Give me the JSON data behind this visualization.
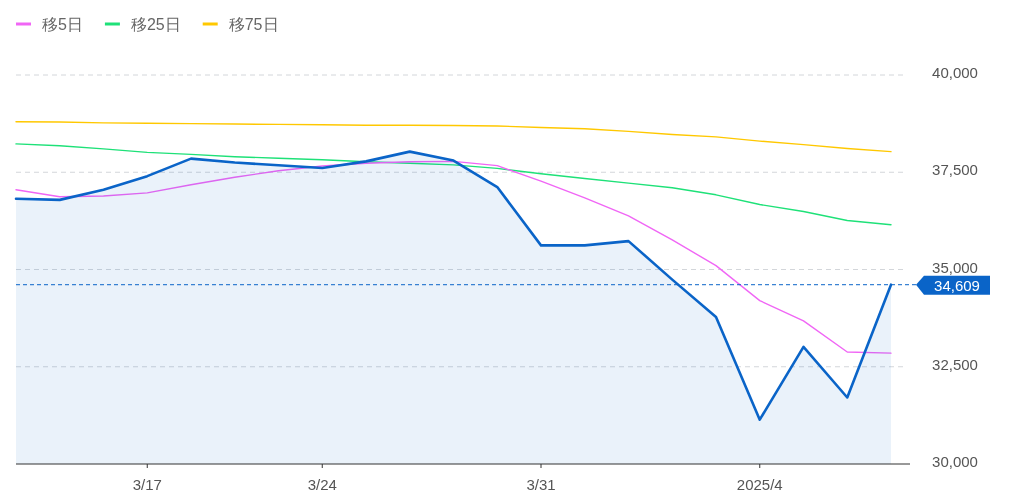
{
  "chart_data": {
    "type": "line",
    "categories": [
      null,
      null,
      null,
      "3/17",
      null,
      null,
      null,
      "3/24",
      null,
      null,
      null,
      null,
      "3/31",
      null,
      null,
      null,
      null,
      "2025/4",
      null,
      null,
      null
    ],
    "series": [
      {
        "type": "area",
        "color": "#0a64c8",
        "values": [
          36820,
          36790,
          37050,
          37400,
          37850,
          37750,
          37680,
          37610,
          37780,
          38030,
          37800,
          37120,
          35620,
          35620,
          35730,
          34740,
          33780,
          31140,
          33010,
          31710,
          34609
        ]
      },
      {
        "name": "移5日",
        "color": "#f066f5",
        "values": [
          37050,
          36870,
          36890,
          36970,
          37180,
          37370,
          37540,
          37660,
          37730,
          37770,
          37780,
          37670,
          37270,
          36840,
          36380,
          35760,
          35100,
          34200,
          33680,
          32880,
          32850
        ]
      },
      {
        "name": "移25日",
        "color": "#1ee178",
        "values": [
          38230,
          38180,
          38100,
          38010,
          37960,
          37900,
          37860,
          37820,
          37770,
          37730,
          37690,
          37600,
          37460,
          37340,
          37220,
          37100,
          36920,
          36670,
          36490,
          36260,
          36150
        ]
      },
      {
        "name": "移75日",
        "color": "#ffc800",
        "values": [
          38800,
          38790,
          38770,
          38760,
          38750,
          38740,
          38730,
          38720,
          38710,
          38710,
          38700,
          38690,
          38650,
          38620,
          38550,
          38470,
          38410,
          38300,
          38210,
          38110,
          38030
        ]
      }
    ],
    "ylim": [
      30000,
      40000
    ],
    "yticks": [
      {
        "value": 30000,
        "label": "30,000"
      },
      {
        "value": 32500,
        "label": "32,500"
      },
      {
        "value": 35000,
        "label": "35,000"
      },
      {
        "value": 37500,
        "label": "37,500"
      },
      {
        "value": 40000,
        "label": "40,000"
      }
    ],
    "grid": "y",
    "legend": "top left",
    "ref_lines": [
      {
        "axis": "y",
        "value": 34609,
        "label": "34,609",
        "color": "#0a64c8",
        "line_style": "dashed"
      }
    ]
  }
}
